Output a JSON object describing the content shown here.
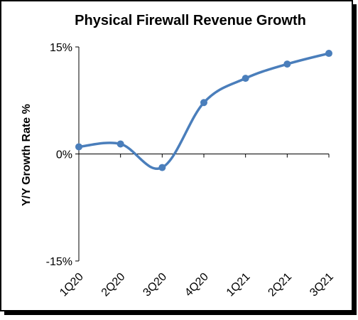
{
  "chart_data": {
    "type": "line",
    "title": "Physical Firewall Revenue Growth",
    "ylabel": "Y/Y Growth Rate %",
    "xlabel": "",
    "categories": [
      "1Q20",
      "2Q20",
      "3Q20",
      "4Q20",
      "1Q21",
      "2Q21",
      "3Q21"
    ],
    "series": [
      {
        "values": [
          1.0,
          1.4,
          -1.9,
          7.2,
          10.6,
          12.6,
          14.1
        ]
      }
    ],
    "ylim": [
      -15,
      15
    ],
    "yticks": [
      15,
      0,
      -15
    ],
    "ytick_labels": [
      "15%",
      "0%",
      "-15%"
    ],
    "grid": false,
    "legend": "none",
    "line_color": "#4a7ebb",
    "smooth": true
  }
}
